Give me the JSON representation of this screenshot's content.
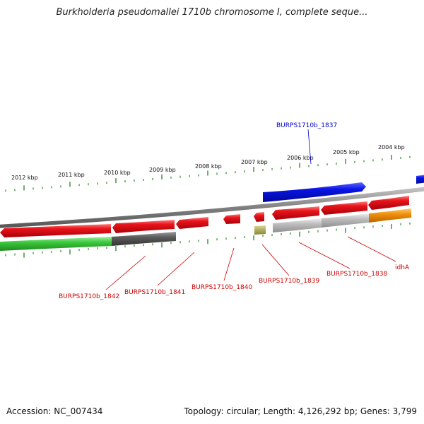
{
  "header": {
    "title": "Burkholderia pseudomallei 1710b chromosome I, complete seque..."
  },
  "footer": {
    "accession": "Accession: NC_007434",
    "summary": "Topology: circular; Length: 4,126,292 bp; Genes: 3,799"
  },
  "colors": {
    "tick": "#2e8b2e",
    "backbone": "#808080",
    "red_gene": "#e8141b",
    "blue_gene": "#0a14e6",
    "green_gene": "#3cc83c",
    "dark_gray_gene": "#5a5a5a",
    "light_gray_gene": "#bdbdbd",
    "olive_gene": "#b8b464",
    "orange_gene": "#f0900a",
    "red_label": "#cc0000",
    "blue_label": "#0000cc"
  },
  "scale": {
    "unit": "kbp",
    "labels": [
      "2012 kbp",
      "2011 kbp",
      "2010 kbp",
      "2009 kbp",
      "2008 kbp",
      "2007 kbp",
      "2006 kbp",
      "2005 kbp",
      "2004 kbp"
    ]
  },
  "genes": {
    "labelled": [
      {
        "name": "BURPS1710b_1837",
        "color": "blue_label"
      },
      {
        "name": "BURPS1710b_1842",
        "color": "red_label"
      },
      {
        "name": "BURPS1710b_1841",
        "color": "red_label"
      },
      {
        "name": "BURPS1710b_1840",
        "color": "red_label"
      },
      {
        "name": "BURPS1710b_1839",
        "color": "red_label"
      },
      {
        "name": "BURPS1710b_1838",
        "color": "red_label"
      },
      {
        "name": "idhA",
        "color": "red_label"
      }
    ]
  }
}
